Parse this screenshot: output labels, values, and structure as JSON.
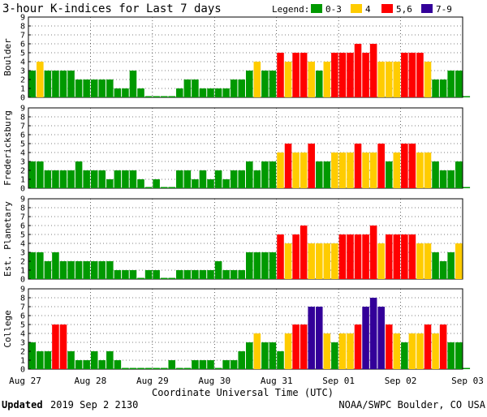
{
  "chart_data": {
    "type": "bar",
    "title": "3-hour K-indices for Last 7 days",
    "legend": {
      "label": "Legend:",
      "entries": [
        {
          "label": "0-3",
          "color": "#009900"
        },
        {
          "label": "4",
          "color": "#ffcc00"
        },
        {
          "label": "5,6",
          "color": "#ff0000"
        },
        {
          "label": "7-9",
          "color": "#330099"
        }
      ]
    },
    "ylim": [
      0,
      9
    ],
    "yticks": [
      0,
      1,
      2,
      3,
      4,
      5,
      6,
      7,
      8,
      9
    ],
    "xlabel": "Coordinate Universal Time (UTC)",
    "x_ticks": [
      "Aug 27",
      "Aug 28",
      "Aug 29",
      "Aug 30",
      "Aug 31",
      "Sep 01",
      "Sep 02",
      "Sep 03"
    ],
    "panels": [
      {
        "name": "Boulder",
        "values": [
          3,
          4,
          3,
          3,
          3,
          3,
          2,
          2,
          2,
          2,
          2,
          1,
          1,
          3,
          1,
          0,
          0,
          0,
          0,
          1,
          2,
          2,
          1,
          1,
          1,
          1,
          2,
          2,
          3,
          4,
          3,
          3,
          5,
          4,
          5,
          5,
          4,
          3,
          4,
          5,
          5,
          5,
          6,
          5,
          6,
          4,
          4,
          4,
          5,
          5,
          5,
          4,
          2,
          2,
          3,
          3,
          0
        ]
      },
      {
        "name": "Fredericksburg",
        "values": [
          3,
          3,
          2,
          2,
          2,
          2,
          3,
          2,
          2,
          2,
          1,
          2,
          2,
          2,
          1,
          0,
          1,
          0,
          0,
          2,
          2,
          1,
          2,
          1,
          2,
          1,
          2,
          2,
          3,
          2,
          3,
          3,
          4,
          5,
          4,
          4,
          5,
          3,
          3,
          4,
          4,
          4,
          5,
          4,
          4,
          5,
          3,
          4,
          5,
          5,
          4,
          4,
          3,
          2,
          2,
          3,
          0
        ]
      },
      {
        "name": "Est. Planetary",
        "values": [
          3,
          3,
          2,
          3,
          2,
          2,
          2,
          2,
          2,
          2,
          2,
          1,
          1,
          1,
          0,
          1,
          1,
          0,
          0,
          1,
          1,
          1,
          1,
          1,
          2,
          1,
          1,
          1,
          3,
          3,
          3,
          3,
          5,
          4,
          5,
          6,
          4,
          4,
          4,
          4,
          5,
          5,
          5,
          5,
          6,
          4,
          5,
          5,
          5,
          5,
          4,
          4,
          3,
          2,
          3,
          4
        ]
      },
      {
        "name": "College",
        "values": [
          3,
          2,
          2,
          5,
          5,
          2,
          1,
          1,
          2,
          1,
          2,
          1,
          0,
          0,
          0,
          0,
          0,
          0,
          1,
          0,
          0,
          1,
          1,
          1,
          0,
          1,
          1,
          2,
          3,
          4,
          3,
          3,
          2,
          4,
          5,
          5,
          7,
          7,
          4,
          3,
          4,
          4,
          5,
          7,
          8,
          7,
          5,
          4,
          3,
          4,
          4,
          5,
          4,
          5,
          3,
          3,
          0
        ]
      }
    ]
  },
  "footer": {
    "updated_label": "Updated",
    "updated_value": "2019 Sep  2 2130",
    "source": "NOAA/SWPC Boulder, CO USA"
  }
}
